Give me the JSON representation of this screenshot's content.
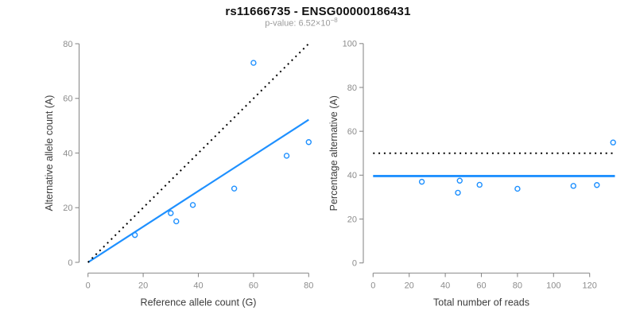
{
  "header": {
    "title": "rs11666735 - ENSG00000186431",
    "subtitle_prefix": "p-value: 6.52×10",
    "subtitle_exponent": "−8"
  },
  "colors": {
    "accent": "#1E90FF",
    "axis": "#8C8C8C",
    "tick_label": "#8C8C8C",
    "axis_label": "#3C3C3C",
    "title": "#111111",
    "subtitle": "#9B9B9B",
    "reference": "#000000"
  },
  "chart_data": [
    {
      "type": "scatter",
      "panel": "allele-counts",
      "title": "rs11666735 - ENSG00000186431",
      "subtitle": "p-value: 6.52×10−8",
      "xlabel": "Reference allele count (G)",
      "ylabel": "Alternative allele count (A)",
      "xlim": [
        0,
        80
      ],
      "ylim": [
        0,
        80
      ],
      "xticks": [
        0,
        20,
        40,
        60,
        80
      ],
      "yticks": [
        0,
        20,
        40,
        60,
        80
      ],
      "grid": false,
      "points": [
        [
          17,
          10
        ],
        [
          30,
          18
        ],
        [
          32,
          15
        ],
        [
          38,
          21
        ],
        [
          53,
          27
        ],
        [
          60,
          73
        ],
        [
          72,
          39
        ],
        [
          80,
          44
        ]
      ],
      "lines": [
        {
          "name": "fitted-proportion-line",
          "x1": 0,
          "y1": 0,
          "x2": 80,
          "y2": 52.2,
          "style": "solid",
          "color": "accent",
          "width": 2.2
        },
        {
          "name": "identity-line",
          "x1": 0,
          "y1": 0,
          "x2": 80,
          "y2": 80,
          "style": "dotted",
          "color": "reference",
          "width": 2
        }
      ]
    },
    {
      "type": "scatter",
      "panel": "percentage-vs-coverage",
      "xlabel": "Total number of reads",
      "ylabel": "Percentage alternative (A)",
      "xlim": [
        0,
        134
      ],
      "ylim": [
        0,
        100
      ],
      "xticks": [
        0,
        20,
        40,
        60,
        80,
        100,
        120
      ],
      "yticks": [
        0,
        20,
        40,
        60,
        80,
        100
      ],
      "grid": false,
      "points": [
        [
          27,
          37
        ],
        [
          47,
          32
        ],
        [
          48,
          37.5
        ],
        [
          59,
          35.6
        ],
        [
          80,
          33.8
        ],
        [
          111,
          35.1
        ],
        [
          124,
          35.5
        ],
        [
          133,
          54.9
        ]
      ],
      "lines": [
        {
          "name": "fitted-percentage-line",
          "x1": 0,
          "y1": 39.6,
          "x2": 134,
          "y2": 39.6,
          "style": "solid",
          "color": "accent",
          "width": 2.8
        },
        {
          "name": "fifty-percent-line",
          "x1": 0,
          "y1": 50,
          "x2": 134,
          "y2": 50,
          "style": "dotted",
          "color": "reference",
          "width": 2
        }
      ]
    }
  ]
}
